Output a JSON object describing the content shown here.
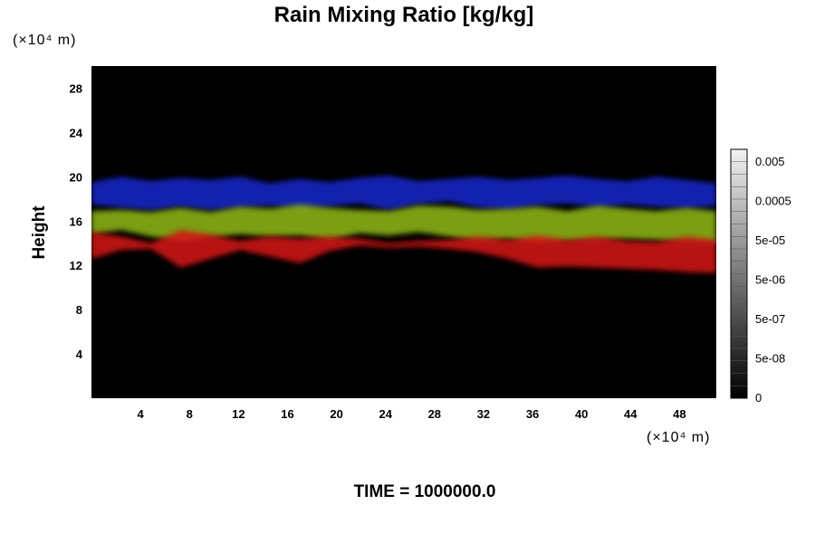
{
  "chart_data": {
    "type": "heatmap",
    "title": "Rain Mixing Ratio [kg/kg]",
    "ylabel": "Height",
    "xlabel": "",
    "y_unit_label": "(×10⁴ m)",
    "x_unit_label": "(×10⁴ m)",
    "footer": "TIME = 1000000.0",
    "xlim": [
      0,
      51
    ],
    "ylim": [
      0,
      30
    ],
    "x_ticks": [
      "4",
      "8",
      "12",
      "16",
      "20",
      "24",
      "28",
      "32",
      "36",
      "40",
      "44",
      "48"
    ],
    "y_ticks": [
      "4",
      "8",
      "12",
      "16",
      "20",
      "24",
      "28"
    ],
    "x_tick_values": [
      4,
      8,
      12,
      16,
      20,
      24,
      28,
      32,
      36,
      40,
      44,
      48
    ],
    "y_tick_values": [
      4,
      8,
      12,
      16,
      20,
      24,
      28
    ],
    "colorbar": {
      "labels": [
        "0",
        "5e-08",
        "5e-07",
        "5e-06",
        "5e-05",
        "0.0005",
        "0.005"
      ],
      "levels": 20
    },
    "background_color": "#000000",
    "layers": [
      {
        "color": "#1428c8",
        "bottom": [
          17.5,
          17.2,
          17.0,
          17.3,
          17.0,
          17.2,
          17.4,
          17.1,
          17.3,
          17.6,
          17.0,
          17.5,
          17.8,
          17.2,
          17.0,
          17.4,
          17.6,
          17.2,
          17.5,
          17.3,
          17.1,
          17.4
        ],
        "top": [
          19.5,
          20.0,
          19.6,
          19.9,
          19.7,
          20.0,
          19.4,
          19.8,
          19.5,
          19.9,
          20.1,
          19.6,
          19.8,
          20.0,
          19.7,
          19.9,
          20.1,
          19.8,
          19.6,
          20.0,
          19.7,
          19.4
        ]
      },
      {
        "color": "#8cb414",
        "bottom": [
          14.8,
          15.2,
          14.6,
          14.2,
          14.5,
          14.8,
          14.6,
          14.7,
          14.3,
          14.9,
          14.7,
          15.0,
          14.6,
          14.2,
          14.4,
          14.0,
          14.2,
          14.3,
          14.4,
          14.3,
          14.1,
          14.0
        ],
        "top": [
          16.9,
          17.0,
          16.8,
          17.2,
          16.8,
          17.3,
          17.1,
          17.5,
          17.2,
          17.0,
          16.9,
          17.4,
          17.3,
          17.0,
          17.1,
          17.3,
          16.9,
          17.4,
          17.1,
          16.9,
          17.2,
          16.9
        ]
      },
      {
        "color": "#d21414",
        "bottom": [
          12.6,
          13.4,
          13.5,
          11.8,
          12.6,
          13.4,
          12.8,
          12.2,
          13.3,
          13.8,
          13.6,
          13.7,
          13.5,
          13.2,
          12.6,
          11.8,
          11.9,
          11.8,
          11.7,
          11.6,
          11.4,
          11.3
        ],
        "top": [
          15.0,
          14.6,
          14.0,
          15.2,
          14.8,
          14.2,
          14.6,
          14.4,
          14.6,
          14.4,
          14.0,
          14.2,
          14.3,
          14.6,
          14.3,
          14.7,
          14.3,
          14.6,
          14.2,
          14.1,
          14.6,
          14.3
        ]
      }
    ]
  }
}
